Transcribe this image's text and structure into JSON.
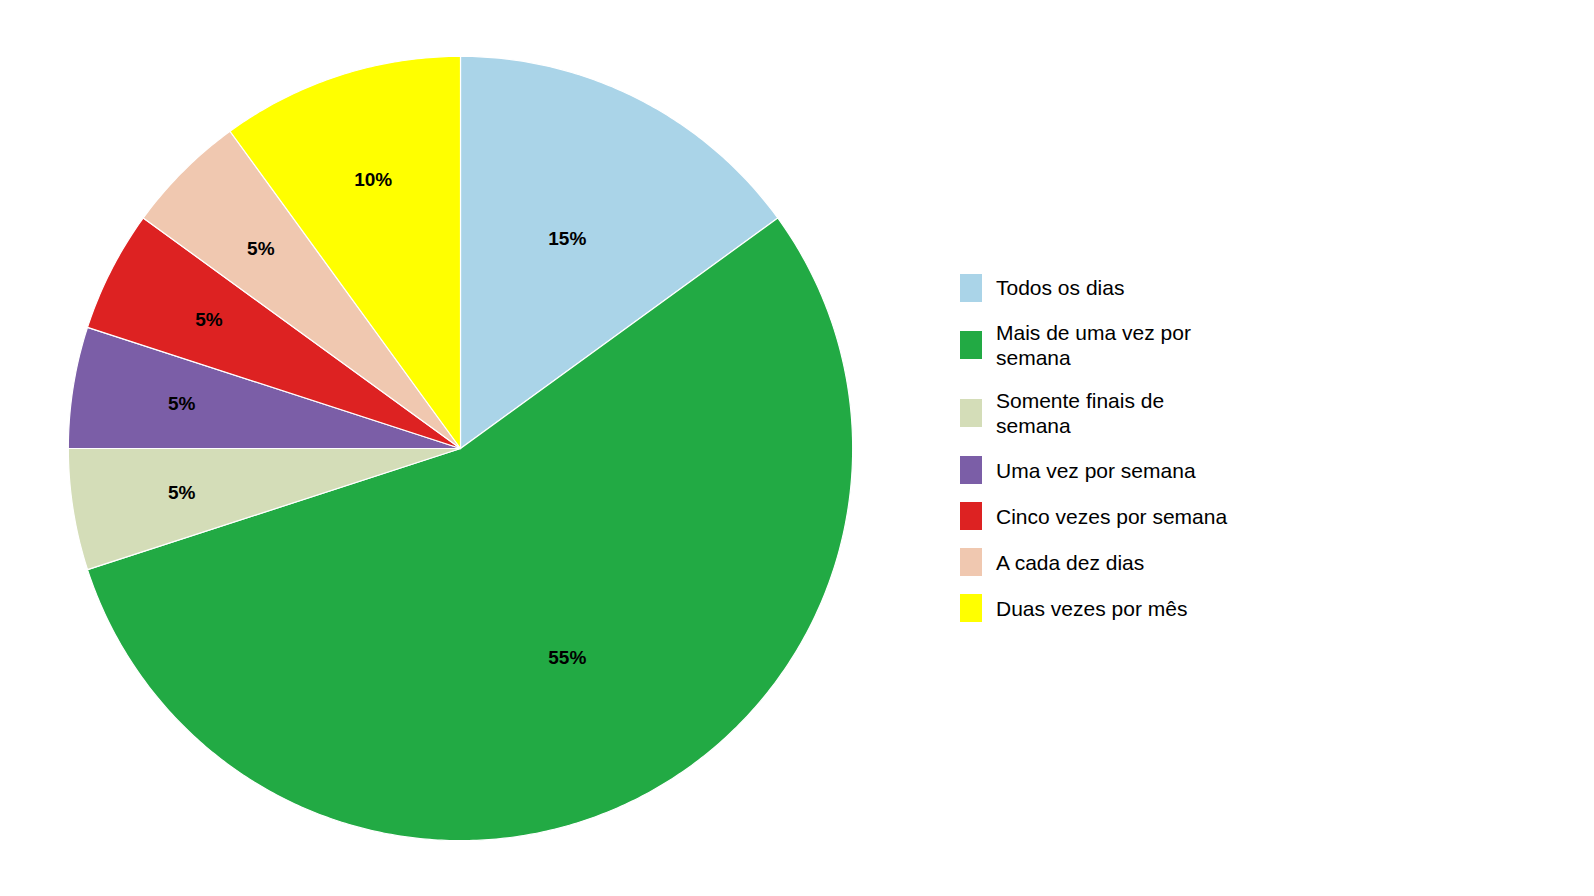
{
  "chart_data": {
    "type": "pie",
    "categories": [
      "Todos os dias",
      "Mais de uma vez por\nsemana",
      "Somente finais de\nsemana",
      "Uma vez por semana",
      "Cinco vezes por semana",
      "A cada dez dias",
      "Duas vezes por mês"
    ],
    "values": [
      15,
      55,
      5,
      5,
      5,
      5,
      10
    ],
    "value_labels": [
      "15%",
      "55%",
      "5%",
      "5%",
      "5%",
      "5%",
      "10%"
    ],
    "colors": [
      "#aad4e8",
      "#22aa44",
      "#d4ddb8",
      "#7b5ea7",
      "#dd2222",
      "#f0c8b0",
      "#ffff00"
    ],
    "data_labels": true,
    "legend": "right"
  }
}
